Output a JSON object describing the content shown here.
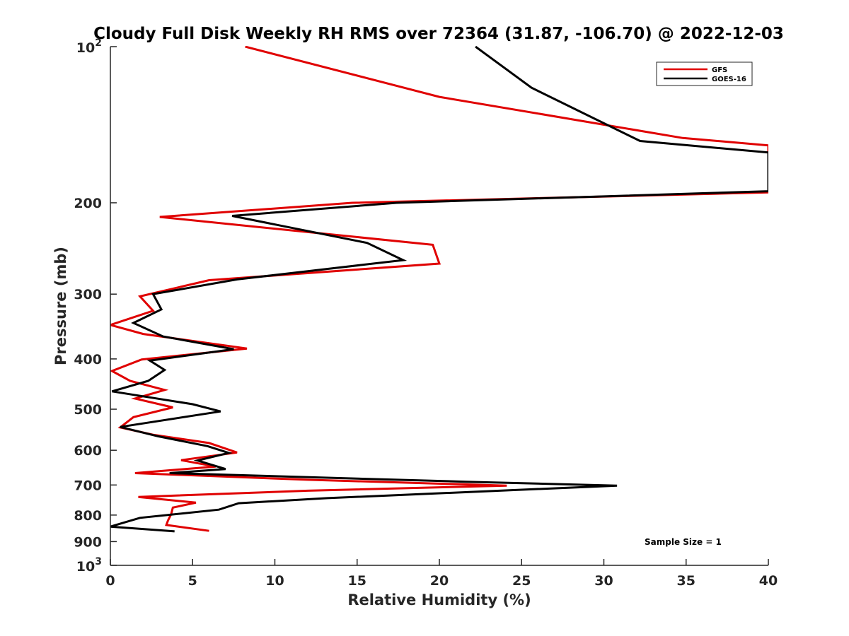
{
  "chart_data": {
    "type": "line",
    "title": "Cloudy Full Disk Weekly RH RMS over 72364 (31.87, -106.70) @ 2022-12-03",
    "xlabel": "Relative Humidity (%)",
    "ylabel": "Pressure (mb)",
    "xlim": [
      0,
      40
    ],
    "ylim": [
      100,
      1000
    ],
    "y_scale": "log",
    "y_reversed": true,
    "x_ticks": [
      "0",
      "5",
      "10",
      "15",
      "20",
      "25",
      "30",
      "35",
      "40"
    ],
    "y_ticks": [
      {
        "value": 100,
        "base": "10",
        "exp": "2",
        "label": ""
      },
      {
        "value": 200,
        "label": "200"
      },
      {
        "value": 300,
        "label": "300"
      },
      {
        "value": 400,
        "label": "400"
      },
      {
        "value": 500,
        "label": "500"
      },
      {
        "value": 600,
        "label": "600"
      },
      {
        "value": 700,
        "label": "700"
      },
      {
        "value": 800,
        "label": "800"
      },
      {
        "value": 900,
        "label": "900"
      },
      {
        "value": 1000,
        "base": "10",
        "exp": "3",
        "label": ""
      }
    ],
    "legend_position": "top-right",
    "grid": false,
    "annotation": "Sample Size = 1",
    "series": [
      {
        "name": "GFS",
        "color": "#e00000",
        "points": [
          [
            8.2,
            100
          ],
          [
            20.0,
            125
          ],
          [
            34.8,
            150
          ],
          [
            40,
            155
          ],
          [
            40,
            191
          ],
          [
            14.7,
            200
          ],
          [
            3.0,
            213
          ],
          [
            19.6,
            241
          ],
          [
            20.0,
            262
          ],
          [
            6.0,
            282
          ],
          [
            1.8,
            303
          ],
          [
            2.6,
            323
          ],
          [
            0,
            344
          ],
          [
            2.0,
            358
          ],
          [
            8.3,
            382
          ],
          [
            1.9,
            401
          ],
          [
            0.1,
            422
          ],
          [
            1.2,
            441
          ],
          [
            3.3,
            459
          ],
          [
            1.5,
            477
          ],
          [
            3.8,
            496
          ],
          [
            1.4,
            518
          ],
          [
            0.6,
            542
          ],
          [
            2.6,
            560
          ],
          [
            6.0,
            581
          ],
          [
            7.7,
            606
          ],
          [
            4.3,
            627
          ],
          [
            6.4,
            645
          ],
          [
            1.5,
            664
          ],
          [
            12.0,
            684
          ],
          [
            24.1,
            702
          ],
          [
            12.0,
            718
          ],
          [
            1.7,
            738
          ],
          [
            5.2,
            757
          ],
          [
            3.8,
            774
          ],
          [
            3.7,
            796
          ],
          [
            3.5,
            820
          ],
          [
            3.4,
            836
          ],
          [
            6.0,
            858
          ]
        ]
      },
      {
        "name": "GOES-16",
        "color": "#000000",
        "points": [
          [
            22.2,
            100
          ],
          [
            25.6,
            120
          ],
          [
            32.2,
            152
          ],
          [
            40,
            160
          ],
          [
            40,
            190
          ],
          [
            17.4,
            200
          ],
          [
            7.4,
            212
          ],
          [
            15.6,
            239
          ],
          [
            17.8,
            258
          ],
          [
            7.7,
            281
          ],
          [
            2.6,
            300
          ],
          [
            3.1,
            321
          ],
          [
            1.4,
            341
          ],
          [
            3.2,
            362
          ],
          [
            7.5,
            383
          ],
          [
            2.4,
            403
          ],
          [
            3.3,
            420
          ],
          [
            2.3,
            441
          ],
          [
            0.1,
            462
          ],
          [
            5.0,
            489
          ],
          [
            6.7,
            505
          ],
          [
            0.6,
            541
          ],
          [
            2.9,
            564
          ],
          [
            5.9,
            589
          ],
          [
            7.2,
            607
          ],
          [
            5.3,
            628
          ],
          [
            7.0,
            652
          ],
          [
            3.6,
            664
          ],
          [
            21.6,
            690
          ],
          [
            30.8,
            702
          ],
          [
            13.2,
            742
          ],
          [
            7.8,
            759
          ],
          [
            6.6,
            781
          ],
          [
            1.8,
            810
          ],
          [
            0,
            842
          ],
          [
            3.9,
            860
          ]
        ]
      }
    ]
  }
}
